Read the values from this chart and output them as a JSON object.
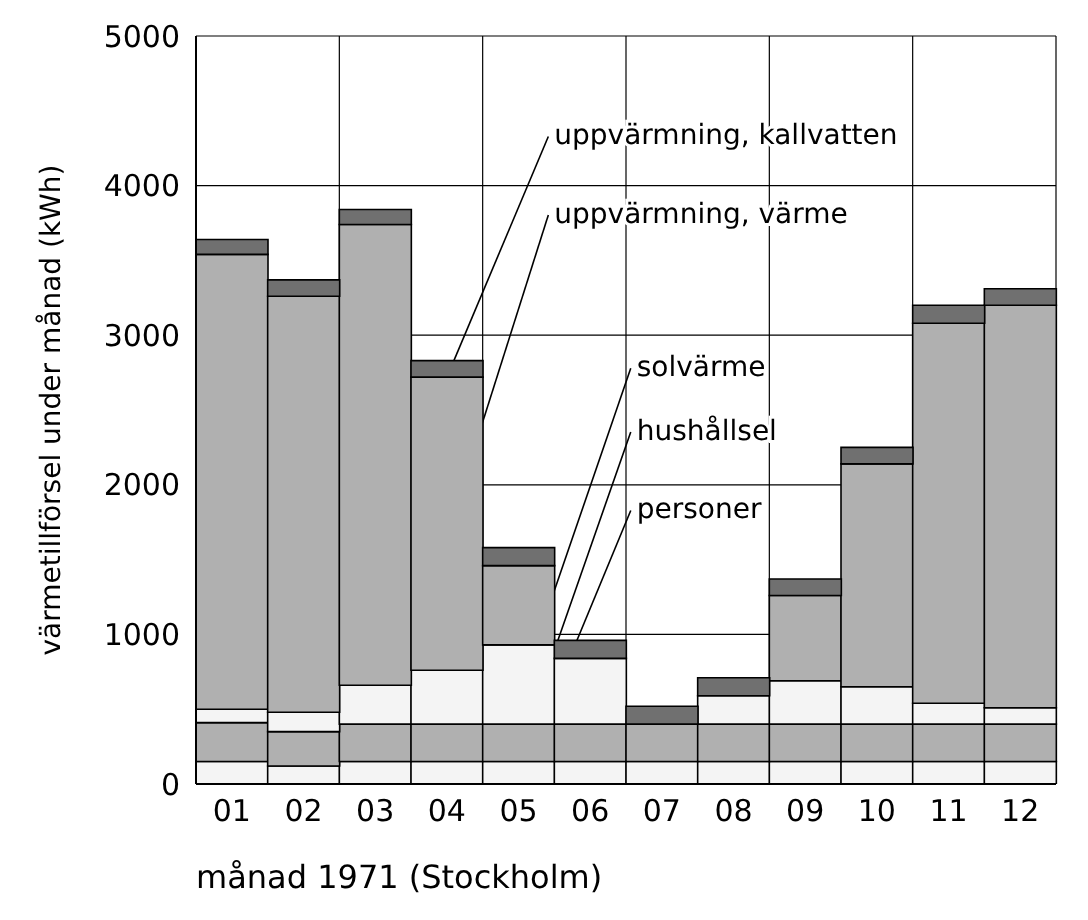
{
  "chart_data": {
    "type": "bar",
    "stacked": true,
    "categories": [
      "01",
      "02",
      "03",
      "04",
      "05",
      "06",
      "07",
      "08",
      "09",
      "10",
      "11",
      "12"
    ],
    "xlabel": "månad 1971 (Stockholm)",
    "ylabel": "värmetillförsel under månad (kWh)",
    "ylim": [
      0,
      5000
    ],
    "yticks": [
      0,
      1000,
      2000,
      3000,
      4000,
      5000
    ],
    "grid": true,
    "legend": false,
    "series": [
      {
        "name": "personer",
        "color": "#f4f4f4",
        "values": [
          150,
          120,
          150,
          150,
          150,
          150,
          150,
          150,
          150,
          150,
          150,
          150
        ]
      },
      {
        "name": "hushållsel",
        "color": "#b0b0b0",
        "values": [
          260,
          230,
          250,
          250,
          250,
          250,
          250,
          250,
          250,
          250,
          250,
          250
        ]
      },
      {
        "name": "solvärme",
        "color": "#f4f4f4",
        "values": [
          90,
          130,
          260,
          360,
          530,
          440,
          0,
          190,
          290,
          250,
          140,
          110
        ]
      },
      {
        "name": "uppvärmning, värme",
        "color": "#b0b0b0",
        "values": [
          3040,
          2780,
          3080,
          1960,
          530,
          0,
          0,
          0,
          570,
          1490,
          2540,
          2690
        ]
      },
      {
        "name": "uppvärmning, kallvatten",
        "color": "#707070",
        "values": [
          100,
          110,
          100,
          110,
          120,
          120,
          120,
          120,
          110,
          110,
          120,
          110
        ]
      }
    ]
  }
}
